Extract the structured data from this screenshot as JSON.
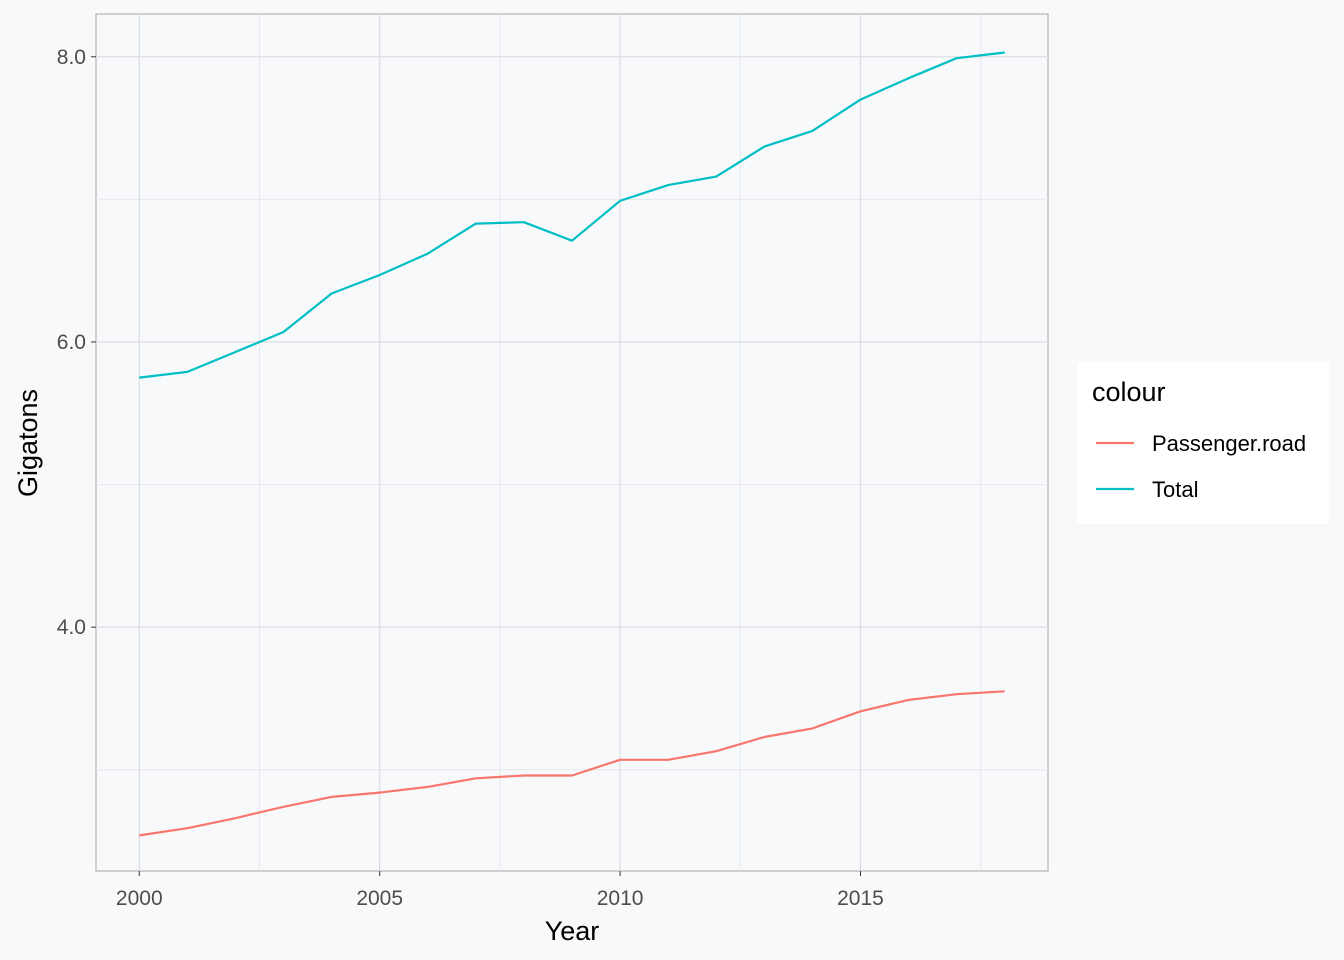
{
  "chart_data": {
    "type": "line",
    "title": "",
    "xlabel": "Year",
    "ylabel": "Gigatons",
    "x": [
      2000,
      2001,
      2002,
      2003,
      2004,
      2005,
      2006,
      2007,
      2008,
      2009,
      2010,
      2011,
      2012,
      2013,
      2014,
      2015,
      2016,
      2017,
      2018
    ],
    "series": [
      {
        "name": "Passenger.road",
        "color": "#F8766D",
        "values": [
          2.54,
          2.59,
          2.66,
          2.74,
          2.81,
          2.84,
          2.88,
          2.94,
          2.96,
          2.96,
          3.07,
          3.07,
          3.13,
          3.23,
          3.29,
          3.41,
          3.49,
          3.53,
          3.55
        ]
      },
      {
        "name": "Total",
        "color": "#00BFC4",
        "values": [
          5.75,
          5.79,
          5.93,
          6.07,
          6.34,
          6.47,
          6.62,
          6.83,
          6.84,
          6.71,
          6.99,
          7.1,
          7.16,
          7.37,
          7.48,
          7.7,
          7.85,
          7.99,
          8.03
        ]
      }
    ],
    "xlim": [
      1999.1,
      2018.9
    ],
    "ylim": [
      2.29,
      8.3
    ],
    "x_ticks": [
      2000,
      2005,
      2010,
      2015
    ],
    "x_tick_labels": [
      "2000",
      "2005",
      "2010",
      "2015"
    ],
    "y_ticks": [
      4.0,
      6.0,
      8.0
    ],
    "y_tick_labels": [
      "4.0",
      "6.0",
      "8.0"
    ],
    "x_minor_ticks": [
      2002.5,
      2007.5,
      2012.5,
      2017.5
    ],
    "y_minor_ticks": [
      3.0,
      5.0,
      7.0
    ],
    "grid": true,
    "legend": {
      "title": "colour",
      "position": "right",
      "entries": [
        "Passenger.road",
        "Total"
      ]
    }
  }
}
